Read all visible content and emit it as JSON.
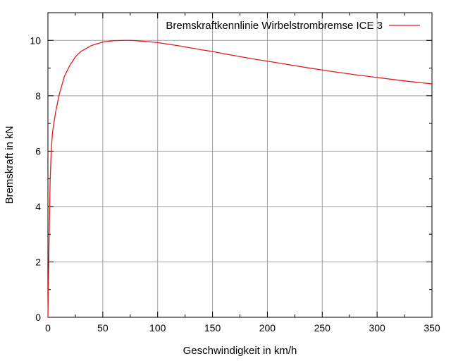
{
  "chart_data": {
    "type": "line",
    "title": "",
    "xlabel": "Geschwindigkeit in km/h",
    "ylabel": "Bremskraft in kN",
    "xlim": [
      0,
      350
    ],
    "ylim": [
      0,
      11
    ],
    "xticks": [
      0,
      50,
      100,
      150,
      200,
      250,
      300,
      350
    ],
    "yticks": [
      0,
      2,
      4,
      6,
      8,
      10
    ],
    "grid": true,
    "legend_position": "top-right",
    "series": [
      {
        "name": "Bremskraftkennlinie Wirbelstrombremse ICE 3",
        "color": "#e41a1c",
        "x": [
          0,
          1,
          2,
          3,
          4,
          5,
          7,
          10,
          15,
          20,
          25,
          30,
          40,
          50,
          60,
          70,
          75,
          80,
          90,
          100,
          110,
          120,
          130,
          140,
          150,
          160,
          170,
          180,
          190,
          200,
          220,
          240,
          250,
          260,
          280,
          300,
          320,
          340,
          350
        ],
        "y": [
          0,
          2.6,
          4.9,
          6.0,
          6.6,
          6.9,
          7.4,
          8.0,
          8.7,
          9.1,
          9.4,
          9.6,
          9.82,
          9.94,
          9.99,
          10.0,
          10.0,
          9.99,
          9.96,
          9.92,
          9.86,
          9.8,
          9.73,
          9.66,
          9.6,
          9.52,
          9.45,
          9.38,
          9.31,
          9.25,
          9.12,
          8.99,
          8.93,
          8.87,
          8.76,
          8.66,
          8.56,
          8.47,
          8.43
        ]
      }
    ]
  }
}
